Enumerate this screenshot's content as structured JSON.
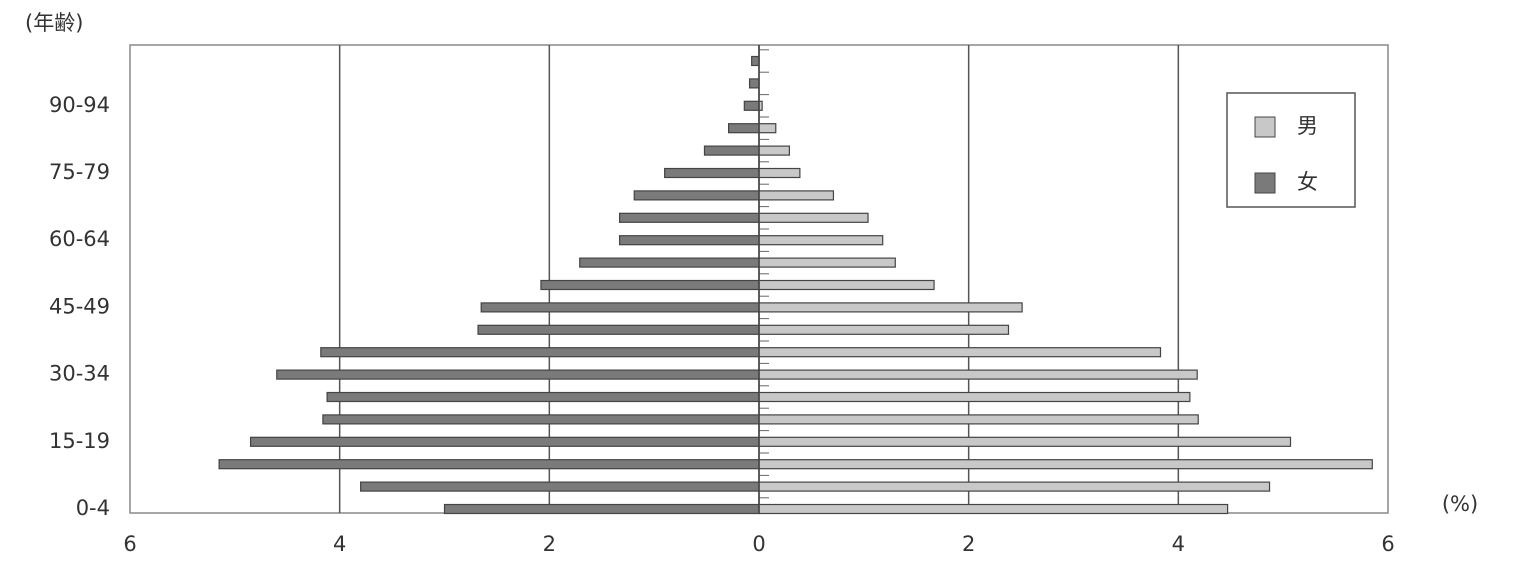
{
  "chart_data": {
    "type": "bar",
    "orientation": "horizontal",
    "stacking": "diverging",
    "y_axis_title": "(年齢)",
    "x_axis_unit": "(%)",
    "categories": [
      "0-4",
      null,
      null,
      "15-19",
      null,
      null,
      "30-34",
      null,
      null,
      "45-49",
      null,
      null,
      "60-64",
      null,
      null,
      "75-79",
      null,
      null,
      "90-94",
      null,
      null
    ],
    "series": [
      {
        "name": "男",
        "color": "#c8c8c8",
        "values": [
          4.47,
          4.87,
          5.85,
          5.07,
          4.19,
          4.11,
          4.18,
          3.83,
          2.38,
          2.51,
          1.67,
          1.3,
          1.18,
          1.04,
          0.71,
          0.39,
          0.29,
          0.16,
          0.03,
          0,
          0
        ]
      },
      {
        "name": "女",
        "color": "#7a7a7a",
        "values": [
          -3.0,
          -3.8,
          -5.15,
          -4.85,
          -4.16,
          -4.12,
          -4.6,
          -4.18,
          -2.68,
          -2.65,
          -2.08,
          -1.71,
          -1.33,
          -1.33,
          -1.19,
          -0.9,
          -0.52,
          -0.29,
          -0.14,
          -0.09,
          -0.07
        ]
      }
    ],
    "xlim": [
      -6,
      6
    ],
    "xticks": [
      {
        "value": -6,
        "label": "6"
      },
      {
        "value": -4,
        "label": "4"
      },
      {
        "value": -2,
        "label": "2"
      },
      0,
      2,
      4,
      6
    ],
    "grid": true,
    "legend": "upper right"
  }
}
